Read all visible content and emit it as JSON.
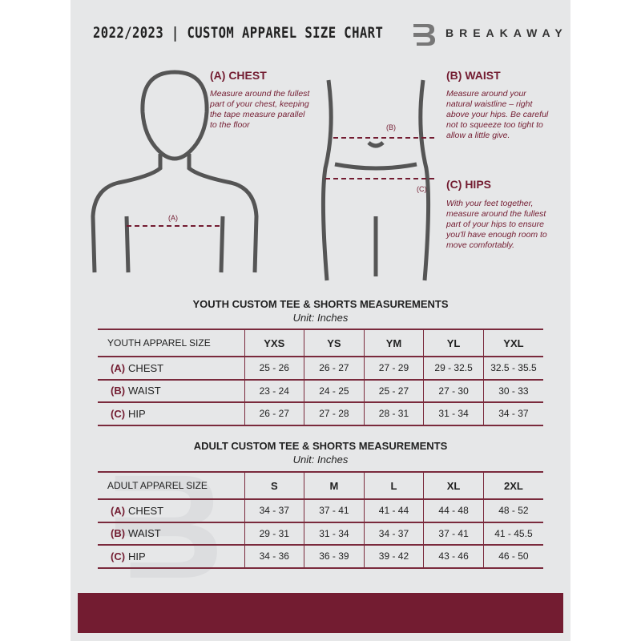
{
  "header": {
    "title": "2022/2023  |  CUSTOM APPAREL SIZE CHART",
    "brand": "BREAKAWAY",
    "logo_letter": "B"
  },
  "guides": {
    "chest": {
      "heading": "(A) CHEST",
      "marker": "(A)",
      "text": "Measure around the fullest part of your chest, keeping the tape measure parallel to the floor"
    },
    "waist": {
      "heading": "(B) WAIST",
      "marker": "(B)",
      "text": "Measure around your natural waistline – right above your hips. Be careful not to squeeze too tight to allow a little give."
    },
    "hips": {
      "heading": "(C) HIPS",
      "marker": "(C)",
      "text": "With your feet together, measure around the fullest part of your hips to ensure you'll have enough room to move comfortably."
    }
  },
  "youth": {
    "title": "YOUTH CUSTOM TEE & SHORTS MEASUREMENTS",
    "unit": "Unit: Inches",
    "size_label": "YOUTH APPAREL SIZE",
    "sizes": [
      "YXS",
      "YS",
      "YM",
      "YL",
      "YXL"
    ],
    "rows": [
      {
        "code": "(A)",
        "name": "CHEST",
        "values": [
          "25 - 26",
          "26 - 27",
          "27 - 29",
          "29 - 32.5",
          "32.5 - 35.5"
        ]
      },
      {
        "code": "(B)",
        "name": "WAIST",
        "values": [
          "23 - 24",
          "24 - 25",
          "25 - 27",
          "27 - 30",
          "30 - 33"
        ]
      },
      {
        "code": "(C)",
        "name": "HIP",
        "values": [
          "26 - 27",
          "27 - 28",
          "28 - 31",
          "31 - 34",
          "34 - 37"
        ]
      }
    ]
  },
  "adult": {
    "title": "ADULT CUSTOM TEE & SHORTS MEASUREMENTS",
    "unit": "Unit: Inches",
    "size_label": "ADULT APPAREL SIZE",
    "sizes": [
      "S",
      "M",
      "L",
      "XL",
      "2XL"
    ],
    "rows": [
      {
        "code": "(A)",
        "name": "CHEST",
        "values": [
          "34 - 37",
          "37 - 41",
          "41 - 44",
          "44 - 48",
          "48 - 52"
        ]
      },
      {
        "code": "(B)",
        "name": "WAIST",
        "values": [
          "29 - 31",
          "31 - 34",
          "34 - 37",
          "37 - 41",
          "41 - 45.5"
        ]
      },
      {
        "code": "(C)",
        "name": "HIP",
        "values": [
          "34 - 36",
          "36 - 39",
          "39 - 42",
          "43 - 46",
          "46 - 50"
        ]
      }
    ]
  },
  "colors": {
    "accent": "#731c31",
    "background": "#e6e7e8"
  }
}
